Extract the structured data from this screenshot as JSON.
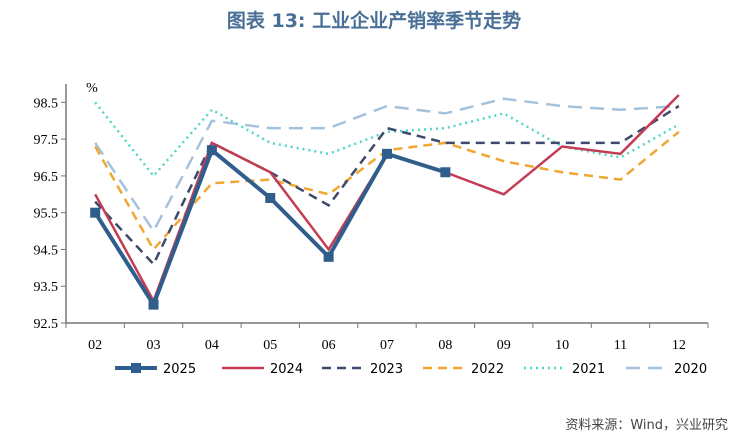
{
  "title": "图表 13: 工业企业产销率季节走势",
  "source": "资料来源：Wind，兴业研究",
  "chart_data": {
    "type": "line",
    "title": "图表 13: 工业企业产销率季节走势",
    "unit_label": "%",
    "xlabel": "",
    "ylabel": "",
    "categories": [
      "02",
      "03",
      "04",
      "05",
      "06",
      "07",
      "08",
      "09",
      "10",
      "11",
      "12"
    ],
    "ylim": [
      92.5,
      99.0
    ],
    "yticks": [
      "92.5",
      "93.5",
      "94.5",
      "95.5",
      "96.5",
      "97.5",
      "98.5"
    ],
    "grid": false,
    "legend_position": "bottom",
    "series": [
      {
        "name": "2025",
        "color": "#2f5d8c",
        "style": "solid-marker",
        "values": [
          95.5,
          93.0,
          97.2,
          95.9,
          94.3,
          97.1,
          96.6,
          null,
          null,
          null,
          null
        ]
      },
      {
        "name": "2024",
        "color": "#c33c54",
        "style": "solid",
        "values": [
          96.0,
          93.1,
          97.4,
          96.6,
          94.5,
          97.1,
          96.6,
          96.0,
          97.3,
          97.1,
          98.7
        ]
      },
      {
        "name": "2023",
        "color": "#3d4a6b",
        "style": "dash",
        "values": [
          95.8,
          94.1,
          97.4,
          96.6,
          95.7,
          97.8,
          97.4,
          97.4,
          97.4,
          97.4,
          98.4
        ]
      },
      {
        "name": "2022",
        "color": "#f0a732",
        "style": "dash",
        "values": [
          97.3,
          94.5,
          96.3,
          96.4,
          96.0,
          97.2,
          97.4,
          96.9,
          96.6,
          96.4,
          97.7
        ]
      },
      {
        "name": "2021",
        "color": "#4fd6c6",
        "style": "dot",
        "values": [
          98.5,
          96.5,
          98.3,
          97.4,
          97.1,
          97.7,
          97.8,
          98.2,
          97.3,
          97.0,
          97.9
        ]
      },
      {
        "name": "2020",
        "color": "#a4c2dc",
        "style": "longdash",
        "values": [
          97.4,
          95.0,
          98.0,
          97.8,
          97.8,
          98.4,
          98.2,
          98.6,
          98.4,
          98.3,
          98.4
        ]
      }
    ]
  }
}
